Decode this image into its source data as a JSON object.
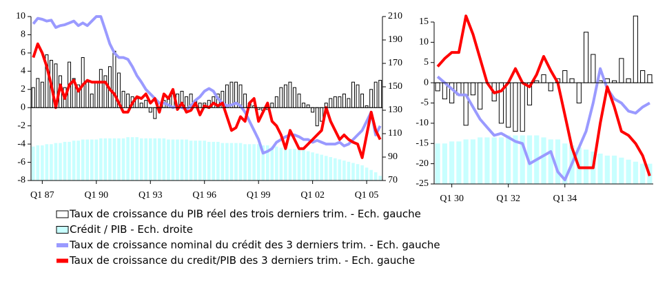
{
  "chart_data": [
    {
      "type": "combo",
      "categories": [
        null,
        null,
        "Q1 87",
        null,
        null,
        null,
        null,
        null,
        null,
        null,
        null,
        null,
        null,
        null,
        "Q1 90",
        null,
        null,
        null,
        null,
        null,
        null,
        null,
        null,
        null,
        null,
        null,
        "Q1 93",
        null,
        null,
        null,
        null,
        null,
        null,
        null,
        null,
        null,
        null,
        null,
        "Q1 96",
        null,
        null,
        null,
        null,
        null,
        null,
        null,
        null,
        null,
        null,
        null,
        "Q1 99",
        null,
        null,
        null,
        null,
        null,
        null,
        null,
        null,
        null,
        null,
        null,
        "Q1 02",
        null,
        null,
        null,
        null,
        null,
        null,
        null,
        null,
        null,
        null,
        null,
        "Q1 05",
        null,
        null,
        null
      ],
      "ylim": [
        -8,
        10
      ],
      "yticks": [
        -8,
        -6,
        -4,
        -2,
        0,
        2,
        4,
        6,
        8,
        10
      ],
      "y2lim": [
        70,
        210
      ],
      "y2ticks": [
        70,
        90,
        110,
        130,
        150,
        170,
        190,
        210
      ],
      "series": [
        {
          "name": "Taux de croissance du PIB réel des trois derniers trim. - Ech. gauche",
          "kind": "bar",
          "color": "#ffffff",
          "edge": "#000000",
          "values": [
            2.2,
            3.2,
            2.8,
            5.8,
            5.2,
            4.8,
            3.5,
            2.2,
            5.0,
            3.2,
            2.5,
            5.5,
            2.8,
            1.5,
            2.8,
            4.2,
            3.5,
            4.5,
            6.2,
            3.8,
            1.8,
            1.5,
            1.2,
            1.0,
            0.5,
            0.8,
            -0.5,
            -1.2,
            0.5,
            0.8,
            1.2,
            1.5,
            1.5,
            1.8,
            1.2,
            1.5,
            0.8,
            0.5,
            0.5,
            0.8,
            1.2,
            1.5,
            1.8,
            2.5,
            2.8,
            2.8,
            2.5,
            1.5,
            0.5,
            0.2,
            -0.2,
            -0.3,
            -0.2,
            0.5,
            1.2,
            2.2,
            2.5,
            2.8,
            2.2,
            1.5,
            0.5,
            0.3,
            -0.5,
            -2.0,
            -1.5,
            0.5,
            1.0,
            1.2,
            1.2,
            1.5,
            1.0,
            2.8,
            2.5,
            1.5,
            0.2,
            2.0,
            2.8,
            3.0
          ]
        },
        {
          "name": "Crédit / PIB - Ech. droite",
          "kind": "bar",
          "axis": "y2",
          "baseline": "bottom",
          "color": "#c8ffff",
          "edge": "#000000",
          "values": [
            99,
            100,
            100,
            101,
            101,
            102,
            102,
            103,
            103,
            104,
            104,
            105,
            105,
            105,
            105,
            106,
            106,
            106,
            106,
            106,
            106,
            107,
            107,
            107,
            106,
            106,
            106,
            106,
            106,
            106,
            105,
            105,
            105,
            105,
            105,
            104,
            104,
            104,
            104,
            103,
            103,
            103,
            102,
            102,
            102,
            102,
            102,
            101,
            101,
            101,
            101,
            100,
            100,
            99,
            99,
            98,
            98,
            97,
            97,
            96,
            96,
            95,
            94,
            93,
            92,
            91,
            90,
            89,
            88,
            87,
            86,
            85,
            84,
            83,
            81,
            79,
            77,
            74
          ]
        },
        {
          "name": "Taux de croissance nominal du crédit des 3 derniers trim. - Ech. gauche",
          "kind": "line",
          "color": "#9a9aff",
          "values": [
            9.2,
            9.8,
            9.7,
            9.5,
            9.6,
            8.8,
            9.0,
            9.1,
            9.3,
            9.5,
            9.0,
            9.3,
            9.0,
            9.5,
            10.0,
            10.0,
            8.5,
            7.0,
            6.0,
            5.5,
            5.5,
            5.3,
            4.5,
            3.5,
            2.8,
            2.0,
            1.5,
            1.0,
            0.5,
            0.5,
            0.3,
            0.0,
            0.2,
            0.0,
            -0.2,
            0.2,
            0.8,
            1.2,
            1.8,
            2.1,
            1.8,
            1.0,
            0.5,
            0.2,
            0.3,
            0.5,
            0.2,
            -0.5,
            -1.5,
            -2.5,
            -3.5,
            -5.0,
            -4.8,
            -4.5,
            -3.8,
            -3.5,
            -3.2,
            -3.0,
            -3.0,
            -3.2,
            -3.5,
            -3.5,
            -3.8,
            -3.6,
            -3.8,
            -4.0,
            -4.0,
            -4.0,
            -3.8,
            -4.2,
            -4.0,
            -3.5,
            -3.0,
            -2.5,
            -1.5,
            -0.5,
            -3.0,
            -2.0
          ]
        },
        {
          "name": "Taux de croissance du credit/PIB des 3 derniers trim. - Ech. gauche",
          "kind": "line",
          "color": "#ff0000",
          "values": [
            5.5,
            7.0,
            6.0,
            4.5,
            2.5,
            0.0,
            2.5,
            1.0,
            2.5,
            3.0,
            1.8,
            2.5,
            3.0,
            2.8,
            2.8,
            2.8,
            2.8,
            2.0,
            1.5,
            0.5,
            -0.5,
            -0.5,
            0.5,
            1.2,
            1.0,
            1.5,
            0.5,
            1.0,
            -0.5,
            1.5,
            1.0,
            2.0,
            -0.2,
            0.5,
            -0.5,
            -0.3,
            0.5,
            -0.8,
            0.2,
            0.0,
            0.5,
            0.2,
            0.5,
            -1.0,
            -2.5,
            -2.2,
            -1.0,
            -1.5,
            0.5,
            1.0,
            -1.5,
            -0.5,
            0.5,
            -1.5,
            -2.0,
            -3.0,
            -4.5,
            -2.5,
            -3.5,
            -4.5,
            -4.5,
            -4.0,
            -3.5,
            -3.0,
            -2.5,
            0.0,
            -1.5,
            -2.5,
            -3.5,
            -3.0,
            -3.5,
            -3.8,
            -4.0,
            -5.5,
            -3.0,
            -0.5,
            -2.5,
            -3.5
          ]
        }
      ]
    },
    {
      "type": "combo",
      "categories": [
        null,
        null,
        "Q1 30",
        null,
        null,
        null,
        null,
        null,
        null,
        null,
        "Q1 32",
        null,
        null,
        null,
        null,
        null,
        null,
        null,
        "Q1 34",
        null,
        null,
        null,
        null,
        null,
        null,
        null,
        null,
        null,
        null,
        null,
        null
      ],
      "ylim": [
        -25,
        15
      ],
      "yticks": [
        -25,
        -20,
        -15,
        -10,
        -5,
        0,
        5,
        10,
        15
      ],
      "series": [
        {
          "name": "Crédit / PIB",
          "kind": "bar",
          "baseline": "bottom",
          "color": "#c8ffff",
          "edge": "#000000",
          "values": [
            -15,
            -15,
            -14.5,
            -14.5,
            -14,
            -14,
            -13.5,
            -13.5,
            -13.5,
            -13.5,
            -13,
            -13,
            -13,
            -13,
            -13,
            -13.5,
            -14,
            -14,
            -15,
            -15.5,
            -16,
            -16.5,
            -17,
            -17.5,
            -18,
            -18,
            -18.5,
            -19,
            -19.5,
            -20,
            -20
          ]
        },
        {
          "name": "PIB",
          "kind": "bar",
          "color": "#ffffff",
          "edge": "#000000",
          "values": [
            -2,
            -4,
            -5,
            -3,
            -10.5,
            -3,
            -6.5,
            0,
            -4.5,
            -10,
            -11,
            -12,
            -12,
            -5.5,
            0.5,
            2,
            -2,
            1,
            3,
            1,
            -5,
            12.5,
            7,
            0.5,
            1,
            0.5,
            6,
            1,
            16.5,
            3,
            2
          ]
        },
        {
          "name": "Crédit nominal",
          "kind": "line",
          "color": "#9a9aff",
          "values": [
            1.5,
            0,
            -1.5,
            -3,
            -3,
            -6,
            -9,
            -11,
            -13,
            -12.5,
            -13.5,
            -14.5,
            -15,
            -20,
            -19,
            -18,
            -17,
            -22,
            -24,
            -20,
            -16,
            -12,
            -5,
            3.5,
            -1.5,
            -4,
            -5,
            -7,
            -7.5,
            -6,
            -5
          ]
        },
        {
          "name": "Crédit/PIB",
          "kind": "line",
          "color": "#ff0000",
          "values": [
            4,
            6,
            7.5,
            7.5,
            16.5,
            12,
            6,
            0,
            -2.5,
            -2,
            0,
            3.5,
            0,
            -1,
            2,
            6.5,
            3,
            0,
            -8,
            -16,
            -21,
            -21,
            -21,
            -10,
            -1,
            -6,
            -12,
            -13,
            -15,
            -18,
            -23
          ]
        }
      ]
    }
  ]
}
